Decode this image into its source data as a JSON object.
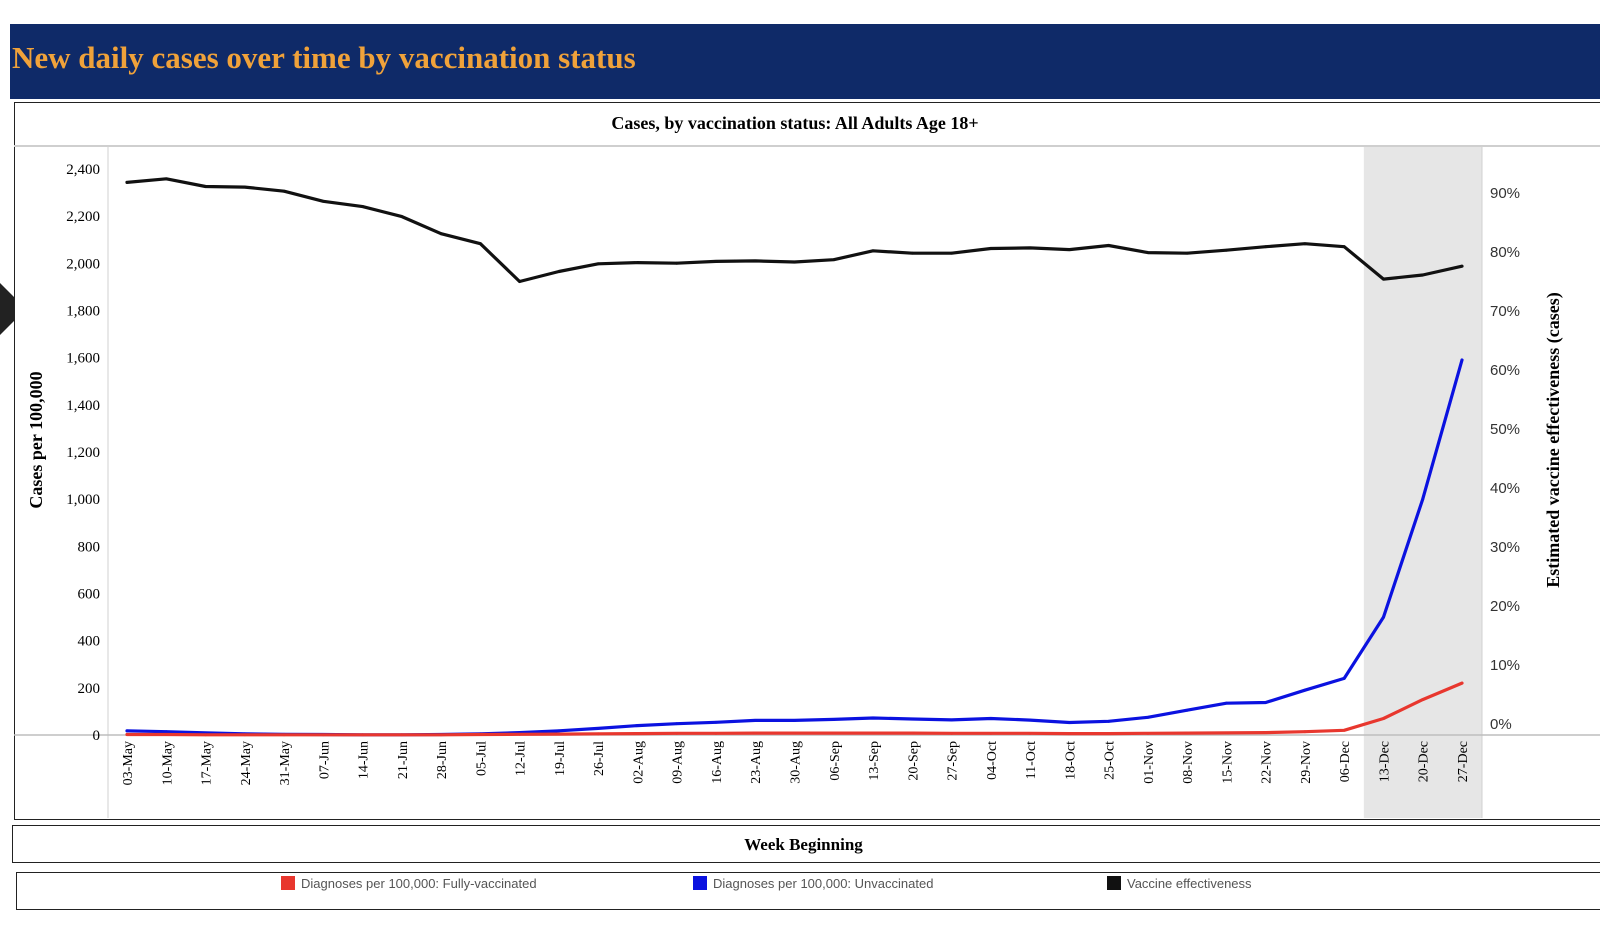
{
  "banner": {
    "title": "New daily cases over time by vaccination status"
  },
  "colors": {
    "banner_bg": "#0f2a68",
    "banner_text": "#f0a23a",
    "fully": "#e8372e",
    "unvax": "#0b12e0",
    "ve": "#111111",
    "highlight": "#e6e6e6"
  },
  "x_axis_title": "Week Beginning",
  "legend": [
    {
      "label": "Diagnoses per 100,000: Fully-vaccinated",
      "color": "#e8372e"
    },
    {
      "label": "Diagnoses per 100,000: Unvaccinated",
      "color": "#0b12e0"
    },
    {
      "label": "Vaccine effectiveness",
      "color": "#111111"
    }
  ],
  "chart_data": {
    "type": "line",
    "title": "Cases, by vaccination status: All Adults Age 18+",
    "xlabel": "Week Beginning",
    "ylabel": "Cases per 100,000",
    "y2label": "Estimated vaccine effectiveness (cases)",
    "ylim": [
      0,
      2500
    ],
    "yticks": [
      0,
      200,
      400,
      600,
      800,
      1000,
      1200,
      1400,
      1600,
      1800,
      2000,
      2200,
      2400
    ],
    "ytick_labels": [
      "0",
      "200",
      "400",
      "600",
      "800",
      "1,000",
      "1,200",
      "1,400",
      "1,600",
      "1,800",
      "2,000",
      "2,200",
      "2,400"
    ],
    "y2lim": [
      0,
      98
    ],
    "y2ticks": [
      0,
      10,
      20,
      30,
      40,
      50,
      60,
      70,
      80,
      90
    ],
    "y2tick_labels": [
      "0%",
      "10%",
      "20%",
      "30%",
      "40%",
      "50%",
      "60%",
      "70%",
      "80%",
      "90%"
    ],
    "highlight_range": [
      "13-Dec",
      "27-Dec"
    ],
    "categories": [
      "03-May",
      "10-May",
      "17-May",
      "24-May",
      "31-May",
      "07-Jun",
      "14-Jun",
      "21-Jun",
      "28-Jun",
      "05-Jul",
      "12-Jul",
      "19-Jul",
      "26-Jul",
      "02-Aug",
      "09-Aug",
      "16-Aug",
      "23-Aug",
      "30-Aug",
      "06-Sep",
      "13-Sep",
      "20-Sep",
      "27-Sep",
      "04-Oct",
      "11-Oct",
      "18-Oct",
      "25-Oct",
      "01-Nov",
      "08-Nov",
      "15-Nov",
      "22-Nov",
      "29-Nov",
      "06-Dec",
      "13-Dec",
      "20-Dec",
      "27-Dec"
    ],
    "series": [
      {
        "name": "Diagnoses per 100,000: Fully-vaccinated",
        "axis": "left",
        "values": [
          2,
          2,
          1,
          1,
          1,
          1,
          1,
          1,
          1,
          2,
          3,
          4,
          5,
          6,
          7,
          7,
          8,
          8,
          8,
          8,
          8,
          7,
          7,
          7,
          6,
          6,
          7,
          8,
          9,
          10,
          14,
          20,
          70,
          150,
          220
        ]
      },
      {
        "name": "Diagnoses per 100,000: Unvaccinated",
        "axis": "left",
        "values": [
          18,
          14,
          9,
          5,
          3,
          2,
          1,
          1,
          2,
          5,
          10,
          18,
          28,
          40,
          48,
          54,
          62,
          62,
          66,
          72,
          68,
          64,
          70,
          63,
          53,
          58,
          75,
          105,
          135,
          138,
          190,
          240,
          500,
          1000,
          1590
        ]
      },
      {
        "name": "Vaccine effectiveness",
        "axis": "right",
        "values": [
          91.8,
          92.4,
          91.1,
          91.0,
          90.3,
          88.6,
          87.7,
          86.0,
          83.1,
          81.4,
          75.0,
          76.7,
          78.0,
          78.2,
          78.1,
          78.4,
          78.5,
          78.3,
          78.7,
          80.2,
          79.8,
          79.8,
          80.6,
          80.7,
          80.4,
          81.1,
          79.9,
          79.8,
          80.3,
          80.9,
          81.4,
          80.9,
          75.4,
          76.1,
          77.6
        ]
      }
    ]
  }
}
